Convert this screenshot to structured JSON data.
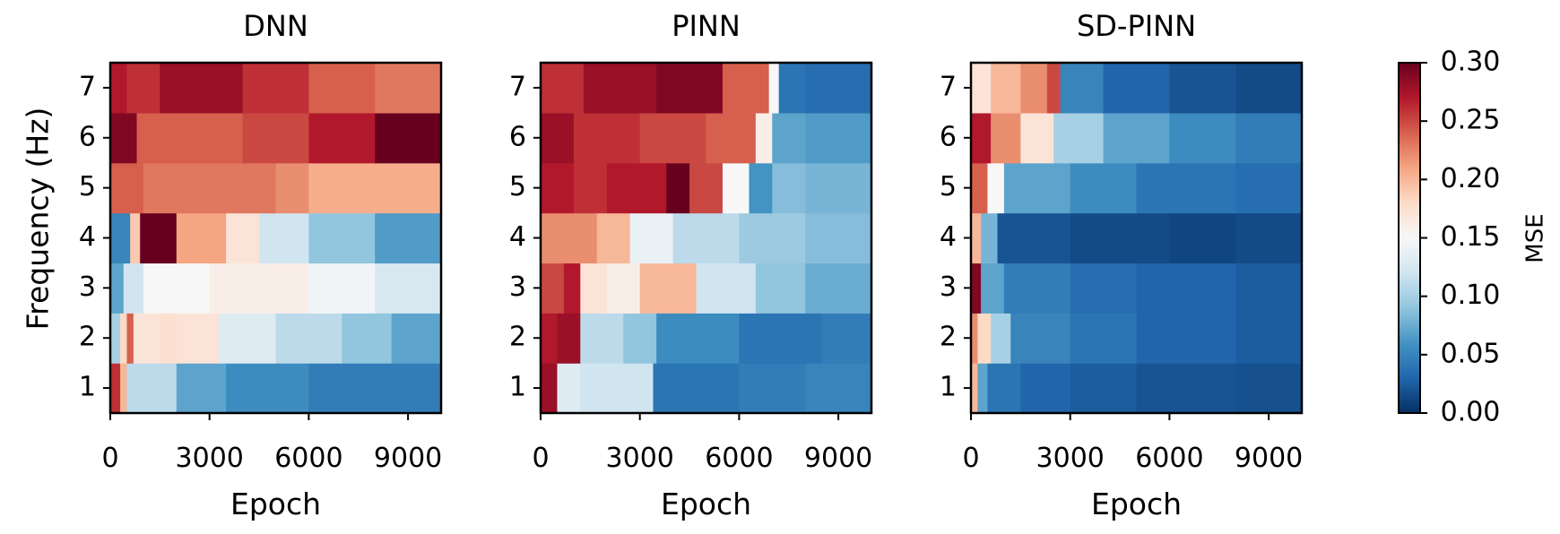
{
  "colorbar": {
    "label": "MSE",
    "range": [
      0.0,
      0.3
    ],
    "ticks": [
      "0.00",
      "0.05",
      "0.10",
      "0.15",
      "0.20",
      "0.25",
      "0.30"
    ],
    "colormap": "RdBu_r"
  },
  "chart_data": [
    {
      "type": "heatmap",
      "title": "DNN",
      "xlabel": "Epoch",
      "ylabel": "Frequency (Hz)",
      "xlim": [
        0,
        10000
      ],
      "x_ticks": [
        "0",
        "3000",
        "6000",
        "9000"
      ],
      "y_ticks": [
        "1",
        "2",
        "3",
        "4",
        "5",
        "6",
        "7"
      ],
      "rows": [
        {
          "freq": 1,
          "segments": [
            [
              0,
              0.26
            ],
            [
              300,
              0.2
            ],
            [
              500,
              0.11
            ],
            [
              2000,
              0.07
            ],
            [
              3500,
              0.055
            ],
            [
              6000,
              0.045
            ],
            [
              8500,
              0.045
            ]
          ]
        },
        {
          "freq": 2,
          "segments": [
            [
              0,
              0.1
            ],
            [
              300,
              0.18
            ],
            [
              500,
              0.24
            ],
            [
              700,
              0.17
            ],
            [
              1500,
              0.175
            ],
            [
              2000,
              0.17
            ],
            [
              3300,
              0.13
            ],
            [
              5000,
              0.11
            ],
            [
              7000,
              0.09
            ],
            [
              8500,
              0.07
            ]
          ]
        },
        {
          "freq": 3,
          "segments": [
            [
              0,
              0.07
            ],
            [
              400,
              0.12
            ],
            [
              1000,
              0.15
            ],
            [
              3000,
              0.16
            ],
            [
              6000,
              0.145
            ],
            [
              8000,
              0.125
            ]
          ]
        },
        {
          "freq": 4,
          "segments": [
            [
              0,
              0.05
            ],
            [
              600,
              0.19
            ],
            [
              900,
              0.3
            ],
            [
              2000,
              0.21
            ],
            [
              3500,
              0.17
            ],
            [
              4500,
              0.12
            ],
            [
              6000,
              0.09
            ],
            [
              8000,
              0.065
            ]
          ]
        },
        {
          "freq": 5,
          "segments": [
            [
              0,
              0.24
            ],
            [
              1000,
              0.23
            ],
            [
              3000,
              0.23
            ],
            [
              5000,
              0.22
            ],
            [
              6000,
              0.205
            ],
            [
              8000,
              0.205
            ]
          ]
        },
        {
          "freq": 6,
          "segments": [
            [
              0,
              0.29
            ],
            [
              800,
              0.24
            ],
            [
              4000,
              0.25
            ],
            [
              6000,
              0.27
            ],
            [
              8000,
              0.3
            ]
          ]
        },
        {
          "freq": 7,
          "segments": [
            [
              0,
              0.27
            ],
            [
              500,
              0.26
            ],
            [
              1500,
              0.28
            ],
            [
              3000,
              0.28
            ],
            [
              4000,
              0.26
            ],
            [
              6000,
              0.24
            ],
            [
              8000,
              0.23
            ]
          ]
        }
      ]
    },
    {
      "type": "heatmap",
      "title": "PINN",
      "xlabel": "Epoch",
      "ylabel": "",
      "xlim": [
        0,
        10000
      ],
      "x_ticks": [
        "0",
        "3000",
        "6000",
        "9000"
      ],
      "y_ticks": [
        "1",
        "2",
        "3",
        "4",
        "5",
        "6",
        "7"
      ],
      "rows": [
        {
          "freq": 1,
          "segments": [
            [
              0,
              0.28
            ],
            [
              500,
              0.13
            ],
            [
              1200,
              0.12
            ],
            [
              3400,
              0.04
            ],
            [
              6000,
              0.045
            ],
            [
              8000,
              0.05
            ]
          ]
        },
        {
          "freq": 2,
          "segments": [
            [
              0,
              0.27
            ],
            [
              500,
              0.28
            ],
            [
              1200,
              0.11
            ],
            [
              2500,
              0.09
            ],
            [
              3500,
              0.055
            ],
            [
              6000,
              0.04
            ],
            [
              8500,
              0.045
            ]
          ]
        },
        {
          "freq": 3,
          "segments": [
            [
              0,
              0.25
            ],
            [
              700,
              0.27
            ],
            [
              1200,
              0.17
            ],
            [
              2000,
              0.16
            ],
            [
              3000,
              0.2
            ],
            [
              4700,
              0.12
            ],
            [
              6500,
              0.09
            ],
            [
              8000,
              0.075
            ]
          ]
        },
        {
          "freq": 4,
          "segments": [
            [
              0,
              0.22
            ],
            [
              800,
              0.22
            ],
            [
              1700,
              0.2
            ],
            [
              2700,
              0.14
            ],
            [
              4000,
              0.11
            ],
            [
              6000,
              0.095
            ],
            [
              8000,
              0.085
            ]
          ]
        },
        {
          "freq": 5,
          "segments": [
            [
              0,
              0.27
            ],
            [
              1000,
              0.26
            ],
            [
              2000,
              0.27
            ],
            [
              3800,
              0.3
            ],
            [
              4500,
              0.25
            ],
            [
              5500,
              0.15
            ],
            [
              6300,
              0.06
            ],
            [
              7000,
              0.085
            ],
            [
              8000,
              0.08
            ]
          ]
        },
        {
          "freq": 6,
          "segments": [
            [
              0,
              0.28
            ],
            [
              1000,
              0.26
            ],
            [
              3000,
              0.25
            ],
            [
              5000,
              0.24
            ],
            [
              6500,
              0.16
            ],
            [
              7000,
              0.07
            ],
            [
              8000,
              0.065
            ]
          ]
        },
        {
          "freq": 7,
          "segments": [
            [
              0,
              0.26
            ],
            [
              1300,
              0.28
            ],
            [
              3500,
              0.29
            ],
            [
              5500,
              0.24
            ],
            [
              6900,
              0.15
            ],
            [
              7200,
              0.04
            ],
            [
              8000,
              0.035
            ]
          ]
        }
      ]
    },
    {
      "type": "heatmap",
      "title": "SD-PINN",
      "xlabel": "Epoch",
      "ylabel": "",
      "xlim": [
        0,
        10000
      ],
      "x_ticks": [
        "0",
        "3000",
        "6000",
        "9000"
      ],
      "y_ticks": [
        "1",
        "2",
        "3",
        "4",
        "5",
        "6",
        "7"
      ],
      "rows": [
        {
          "freq": 1,
          "segments": [
            [
              0,
              0.2
            ],
            [
              200,
              0.07
            ],
            [
              500,
              0.04
            ],
            [
              1500,
              0.03
            ],
            [
              3000,
              0.025
            ],
            [
              5000,
              0.02
            ],
            [
              8000,
              0.018
            ]
          ]
        },
        {
          "freq": 2,
          "segments": [
            [
              0,
              0.22
            ],
            [
              200,
              0.18
            ],
            [
              600,
              0.1
            ],
            [
              1200,
              0.05
            ],
            [
              3000,
              0.04
            ],
            [
              5000,
              0.03
            ],
            [
              8000,
              0.025
            ]
          ]
        },
        {
          "freq": 3,
          "segments": [
            [
              0,
              0.29
            ],
            [
              300,
              0.07
            ],
            [
              1000,
              0.045
            ],
            [
              3000,
              0.035
            ],
            [
              5000,
              0.03
            ],
            [
              8000,
              0.025
            ]
          ]
        },
        {
          "freq": 4,
          "segments": [
            [
              0,
              0.2
            ],
            [
              300,
              0.08
            ],
            [
              800,
              0.02
            ],
            [
              3000,
              0.015
            ],
            [
              6000,
              0.012
            ],
            [
              8000,
              0.015
            ]
          ]
        },
        {
          "freq": 5,
          "segments": [
            [
              0,
              0.24
            ],
            [
              500,
              0.15
            ],
            [
              1000,
              0.07
            ],
            [
              3000,
              0.055
            ],
            [
              5000,
              0.04
            ],
            [
              8000,
              0.035
            ]
          ]
        },
        {
          "freq": 6,
          "segments": [
            [
              0,
              0.27
            ],
            [
              600,
              0.22
            ],
            [
              1500,
              0.17
            ],
            [
              2500,
              0.1
            ],
            [
              4000,
              0.07
            ],
            [
              6000,
              0.055
            ],
            [
              8000,
              0.045
            ]
          ]
        },
        {
          "freq": 7,
          "segments": [
            [
              0,
              0.17
            ],
            [
              600,
              0.2
            ],
            [
              1500,
              0.22
            ],
            [
              2300,
              0.25
            ],
            [
              2700,
              0.05
            ],
            [
              4000,
              0.03
            ],
            [
              6000,
              0.02
            ],
            [
              8000,
              0.015
            ]
          ]
        }
      ]
    }
  ]
}
